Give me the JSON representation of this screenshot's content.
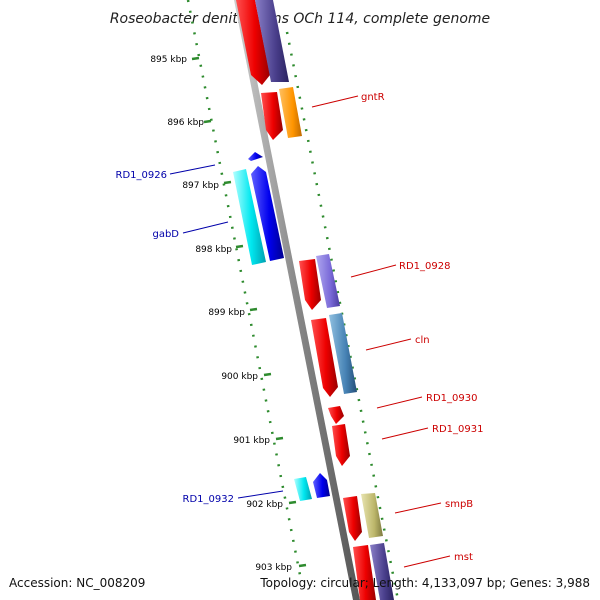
{
  "title": "Roseobacter denitrificans OCh 114, complete genome",
  "footer": {
    "accession": "Accession: NC_008209",
    "summary": "Topology: circular; Length: 4,133,097 bp; Genes: 3,988"
  },
  "scale": {
    "ticks": [
      "895 kbp",
      "896 kbp",
      "897 kbp",
      "898 kbp",
      "899 kbp",
      "900 kbp",
      "901 kbp",
      "902 kbp",
      "903 kbp"
    ]
  },
  "colors": {
    "backbone": "#888888",
    "grid": "#2e8b2e",
    "forward_label": "#cc0000",
    "reverse_label": "#0000aa"
  },
  "genes": {
    "gntR": "gntR",
    "RD1_0926": "RD1_0926",
    "gabD": "gabD",
    "RD1_0928": "RD1_0928",
    "cln": "cln",
    "RD1_0930": "RD1_0930",
    "RD1_0931": "RD1_0931",
    "RD1_0932": "RD1_0932",
    "smpB": "smpB",
    "mst": "mst"
  }
}
